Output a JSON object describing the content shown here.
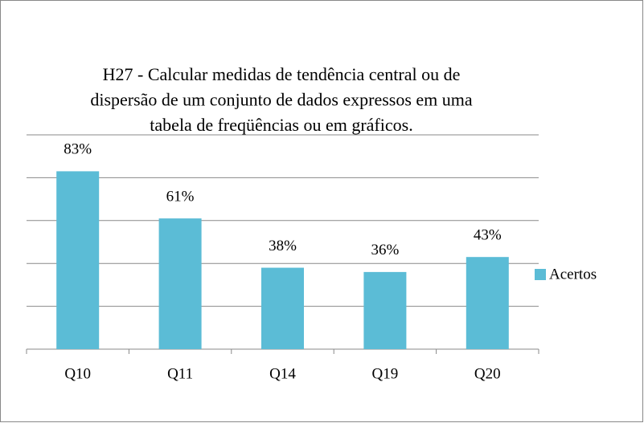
{
  "chart_data": {
    "type": "bar",
    "title": [
      "H27 - Calcular medidas de tendência central ou de",
      "dispersão de um conjunto de dados expressos em uma",
      "tabela de freqüências ou em gráficos."
    ],
    "categories": [
      "Q10",
      "Q11",
      "Q14",
      "Q19",
      "Q20"
    ],
    "series": [
      {
        "name": "Acertos",
        "color": "#5bbcd6",
        "values": [
          83,
          61,
          38,
          36,
          43
        ],
        "value_labels": [
          "83%",
          "61%",
          "38%",
          "36%",
          "43%"
        ]
      }
    ],
    "ylim": [
      0,
      100
    ],
    "yticks": [
      0,
      20,
      40,
      60,
      80,
      100
    ],
    "grid": true,
    "legend": "right"
  }
}
